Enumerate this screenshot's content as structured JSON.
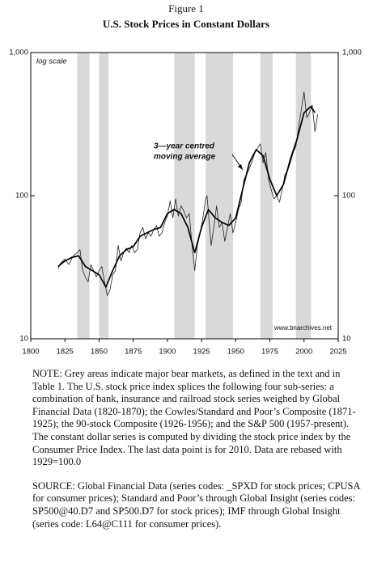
{
  "header": {
    "figure": "Figure 1",
    "title": "U.S. Stock Prices in Constant Dollars"
  },
  "chart_data": {
    "type": "line",
    "log_scale": true,
    "xlim": [
      1800,
      2025
    ],
    "xticks": [
      1800,
      1825,
      1850,
      1875,
      1900,
      1925,
      1950,
      1975,
      2000,
      2025
    ],
    "ylim": [
      10,
      1000
    ],
    "yticks": [
      10,
      100,
      {
        "value": 1000,
        "label": "1,000"
      }
    ],
    "annotations": [
      "log scale",
      "3—year centred",
      "moving average",
      "www.bnarchives.net"
    ],
    "shaded_periods": [
      [
        1834,
        1843
      ],
      [
        1850,
        1857
      ],
      [
        1905,
        1920
      ],
      [
        1928,
        1948
      ],
      [
        1968,
        1977
      ],
      [
        1994,
        2005
      ]
    ],
    "shade_color": "#d9d9d9",
    "series": [
      {
        "color": "#222222",
        "width": 0.8,
        "x": [
          1820,
          1822,
          1825,
          1828,
          1831,
          1834,
          1836,
          1838,
          1840,
          1842,
          1844,
          1846,
          1848,
          1850,
          1852,
          1854,
          1856,
          1858,
          1860,
          1862,
          1864,
          1866,
          1868,
          1870,
          1872,
          1874,
          1876,
          1878,
          1880,
          1882,
          1884,
          1886,
          1888,
          1890,
          1892,
          1894,
          1896,
          1898,
          1900,
          1902,
          1904,
          1906,
          1908,
          1910,
          1912,
          1914,
          1916,
          1918,
          1920,
          1922,
          1924,
          1926,
          1928,
          1929,
          1932,
          1934,
          1936,
          1938,
          1940,
          1942,
          1944,
          1946,
          1948,
          1950,
          1952,
          1954,
          1956,
          1958,
          1960,
          1962,
          1964,
          1966,
          1968,
          1970,
          1972,
          1974,
          1976,
          1978,
          1980,
          1982,
          1984,
          1986,
          1988,
          1990,
          1992,
          1994,
          1996,
          1998,
          2000,
          2002,
          2004,
          2006,
          2008,
          2010
        ],
        "values": [
          31,
          34,
          36,
          33,
          38,
          40,
          42,
          30,
          27,
          25,
          33,
          30,
          27,
          30,
          32,
          25,
          20,
          22,
          28,
          30,
          45,
          35,
          40,
          43,
          40,
          45,
          40,
          42,
          55,
          60,
          50,
          55,
          52,
          58,
          62,
          52,
          55,
          65,
          72,
          92,
          70,
          95,
          72,
          85,
          78,
          70,
          75,
          45,
          30,
          45,
          55,
          70,
          95,
          100,
          45,
          60,
          85,
          60,
          65,
          48,
          60,
          75,
          55,
          65,
          80,
          90,
          130,
          140,
          155,
          175,
          200,
          215,
          230,
          170,
          200,
          130,
          110,
          95,
          100,
          90,
          110,
          140,
          150,
          170,
          200,
          220,
          300,
          400,
          530,
          350,
          380,
          430,
          280,
          370
        ]
      },
      {
        "color": "#000000",
        "width": 1.7,
        "x": [
          1820,
          1825,
          1830,
          1835,
          1840,
          1845,
          1850,
          1855,
          1860,
          1865,
          1870,
          1875,
          1880,
          1885,
          1890,
          1895,
          1900,
          1905,
          1910,
          1915,
          1920,
          1925,
          1930,
          1935,
          1940,
          1945,
          1950,
          1955,
          1960,
          1965,
          1970,
          1975,
          1980,
          1985,
          1990,
          1995,
          2000,
          2005,
          2008
        ],
        "values": [
          32,
          35,
          37,
          38,
          32,
          30,
          28,
          23,
          30,
          38,
          42,
          44,
          52,
          55,
          58,
          60,
          75,
          80,
          75,
          60,
          40,
          60,
          80,
          70,
          65,
          62,
          70,
          110,
          170,
          210,
          190,
          130,
          100,
          120,
          180,
          250,
          380,
          420,
          380
        ]
      }
    ]
  },
  "notes": {
    "note": "NOTE: Grey areas indicate major bear markets, as defined in the text and in Table 1. The U.S. stock price index splices the following four sub-series: a combination of bank, insurance and railroad stock series weighed by Global Financial Data (1820-1870); the Cowles/Standard and Poor’s Composite (1871-1925); the 90-stock Composite (1926-1956); and the S&P 500 (1957-present). The constant dollar series is computed by dividing the stock price index by the Consumer Price Index. The last data point is for 2010. Data are rebased with 1929=100.0",
    "source": "SOURCE: Global Financial Data (series codes: _SPXD for stock prices; CPUSA for consumer prices); Standard and Poor’s through Global Insight (series codes: SP500@40.D7 and SP500.D7 for stock prices); IMF through Global Insight (series code: L64@C111 for consumer prices)."
  }
}
